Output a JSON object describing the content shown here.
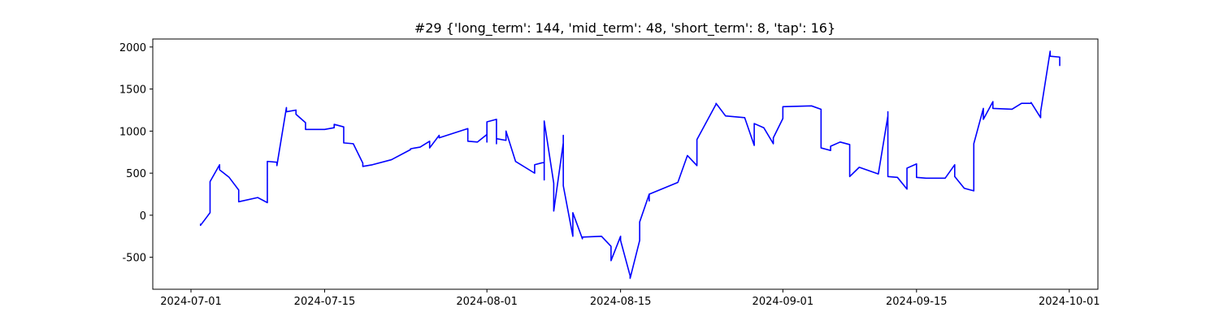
{
  "chart_data": {
    "type": "line",
    "title": "#29 {'long_term': 144, 'mid_term': 48, 'short_term': 8, 'tap': 16}",
    "x": [
      "2024-07-02",
      "2024-07-02",
      "2024-07-03",
      "2024-07-03",
      "2024-07-03",
      "2024-07-04",
      "2024-07-04",
      "2024-07-05",
      "2024-07-06",
      "2024-07-06",
      "2024-07-06",
      "2024-07-08",
      "2024-07-09",
      "2024-07-09",
      "2024-07-10",
      "2024-07-10",
      "2024-07-11",
      "2024-07-11",
      "2024-07-12",
      "2024-07-12",
      "2024-07-13",
      "2024-07-13",
      "2024-07-15",
      "2024-07-16",
      "2024-07-16",
      "2024-07-17",
      "2024-07-17",
      "2024-07-18",
      "2024-07-19",
      "2024-07-19",
      "2024-07-20",
      "2024-07-22",
      "2024-07-24",
      "2024-07-24",
      "2024-07-25",
      "2024-07-26",
      "2024-07-26",
      "2024-07-27",
      "2024-07-27",
      "2024-07-30",
      "2024-07-30",
      "2024-07-31",
      "2024-08-01",
      "2024-08-01",
      "2024-08-01",
      "2024-08-02",
      "2024-08-02",
      "2024-08-02",
      "2024-08-03",
      "2024-08-03",
      "2024-08-04",
      "2024-08-06",
      "2024-08-06",
      "2024-08-07",
      "2024-08-07",
      "2024-08-07",
      "2024-08-08",
      "2024-08-08",
      "2024-08-09",
      "2024-08-09",
      "2024-08-09",
      "2024-08-10",
      "2024-08-10",
      "2024-08-11",
      "2024-08-11",
      "2024-08-13",
      "2024-08-14",
      "2024-08-14",
      "2024-08-15",
      "2024-08-15",
      "2024-08-16",
      "2024-08-16",
      "2024-08-17",
      "2024-08-17",
      "2024-08-18",
      "2024-08-18",
      "2024-08-18",
      "2024-08-21",
      "2024-08-22",
      "2024-08-23",
      "2024-08-23",
      "2024-08-25",
      "2024-08-25",
      "2024-08-26",
      "2024-08-28",
      "2024-08-29",
      "2024-08-29",
      "2024-08-30",
      "2024-08-31",
      "2024-08-31",
      "2024-09-01",
      "2024-09-01",
      "2024-09-04",
      "2024-09-05",
      "2024-09-05",
      "2024-09-06",
      "2024-09-06",
      "2024-09-07",
      "2024-09-08",
      "2024-09-08",
      "2024-09-09",
      "2024-09-11",
      "2024-09-12",
      "2024-09-12",
      "2024-09-12",
      "2024-09-13",
      "2024-09-14",
      "2024-09-14",
      "2024-09-15",
      "2024-09-15",
      "2024-09-16",
      "2024-09-18",
      "2024-09-19",
      "2024-09-19",
      "2024-09-20",
      "2024-09-21",
      "2024-09-21",
      "2024-09-22",
      "2024-09-22",
      "2024-09-23",
      "2024-09-23",
      "2024-09-25",
      "2024-09-26",
      "2024-09-27",
      "2024-09-27",
      "2024-09-28",
      "2024-09-28",
      "2024-09-29",
      "2024-09-29",
      "2024-09-30",
      "2024-09-30",
      "2024-09-30"
    ],
    "series": [
      {
        "color": "#0000ff",
        "values": [
          -100,
          -120,
          30,
          220,
          400,
          600,
          540,
          450,
          300,
          200,
          160,
          210,
          150,
          640,
          630,
          590,
          1280,
          1230,
          1250,
          1200,
          1100,
          1020,
          1020,
          1040,
          1080,
          1050,
          860,
          850,
          620,
          580,
          600,
          660,
          780,
          790,
          810,
          880,
          800,
          950,
          920,
          1030,
          880,
          870,
          960,
          870,
          1110,
          1140,
          850,
          910,
          890,
          1000,
          640,
          500,
          600,
          630,
          420,
          1120,
          380,
          50,
          860,
          950,
          350,
          -250,
          30,
          -280,
          -260,
          -250,
          -370,
          -540,
          -250,
          -300,
          -720,
          -750,
          -300,
          -80,
          250,
          170,
          250,
          390,
          710,
          590,
          900,
          1320,
          1330,
          1180,
          1160,
          830,
          1090,
          1040,
          850,
          920,
          1150,
          1290,
          1300,
          1260,
          800,
          770,
          820,
          870,
          840,
          460,
          570,
          490,
          1180,
          1230,
          460,
          450,
          310,
          560,
          610,
          450,
          440,
          440,
          600,
          460,
          320,
          290,
          850,
          1270,
          1140,
          1350,
          1270,
          1260,
          1330,
          1330,
          1340,
          1160,
          1230,
          1950,
          1890,
          1880,
          1780,
          1810
        ]
      }
    ],
    "xlim": [
      "2024-06-27",
      "2024-10-04"
    ],
    "xticks": [
      "2024-07-01",
      "2024-07-15",
      "2024-08-01",
      "2024-08-15",
      "2024-09-01",
      "2024-09-15",
      "2024-10-01"
    ],
    "ylim": [
      -880,
      2095
    ],
    "yticks": [
      -500,
      0,
      500,
      1000,
      1500,
      2000
    ]
  }
}
